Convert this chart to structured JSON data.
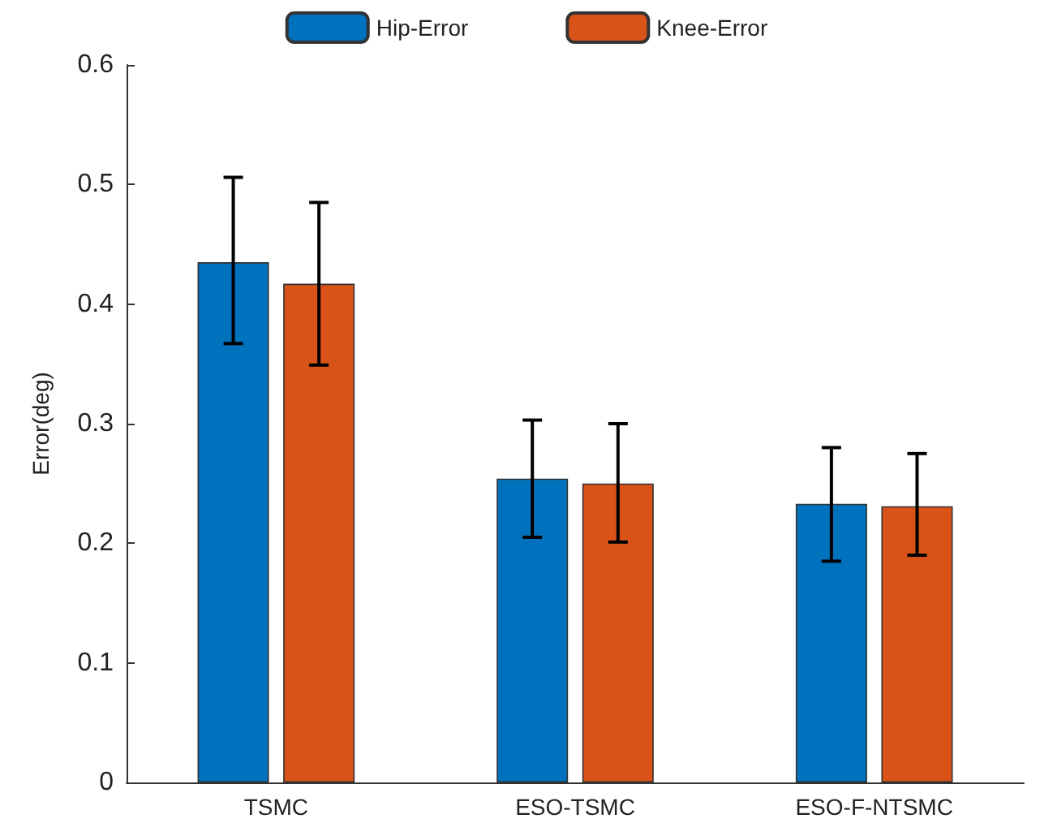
{
  "chart_data": {
    "type": "bar",
    "ylabel": "Error(deg)",
    "categories": [
      "TSMC",
      "ESO-TSMC",
      "ESO-F-NTSMC"
    ],
    "series": [
      {
        "name": "Hip-Error",
        "color": "#0072bd",
        "values": [
          0.435,
          0.254,
          0.233
        ],
        "errors": [
          [
            0.367,
            0.506
          ],
          [
            0.205,
            0.303
          ],
          [
            0.185,
            0.28
          ]
        ]
      },
      {
        "name": "Knee-Error",
        "color": "#d95319",
        "values": [
          0.417,
          0.25,
          0.231
        ],
        "errors": [
          [
            0.349,
            0.485
          ],
          [
            0.201,
            0.3
          ],
          [
            0.19,
            0.275
          ]
        ]
      }
    ],
    "ylim": [
      0,
      0.6
    ],
    "yticks": [
      0,
      0.1,
      0.2,
      0.3,
      0.4,
      0.5,
      0.6
    ],
    "grid": false,
    "legend": "top"
  }
}
